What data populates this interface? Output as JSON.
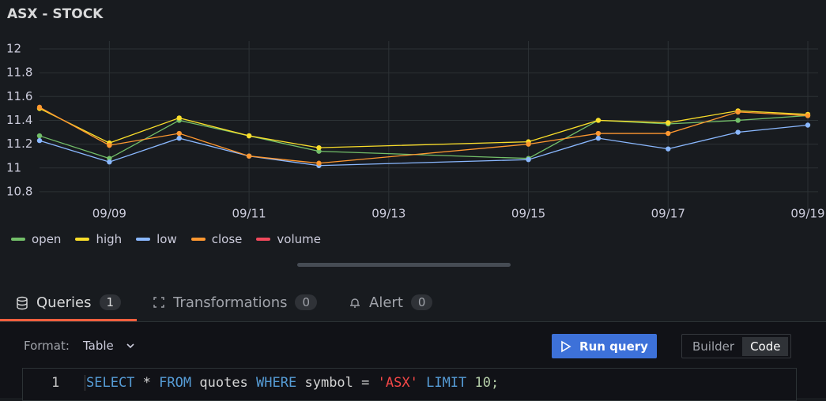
{
  "panel": {
    "title": "ASX - STOCK"
  },
  "chart_data": {
    "type": "line",
    "x": [
      "09/08",
      "09/09",
      "09/10",
      "09/11",
      "09/12",
      "09/15",
      "09/16",
      "09/17",
      "09/18",
      "09/19"
    ],
    "xlim": [
      "09/08",
      "09/19"
    ],
    "xticks": [
      "09/09",
      "09/11",
      "09/13",
      "09/15",
      "09/17",
      "09/19"
    ],
    "ylim": [
      10.7,
      12
    ],
    "yticks": [
      10.8,
      11,
      11.2,
      11.4,
      11.6,
      11.8,
      12
    ],
    "grid": true,
    "legend": "bottom",
    "series": [
      {
        "name": "open",
        "color": "#73bf69",
        "values": [
          11.27,
          11.08,
          11.4,
          11.27,
          11.14,
          11.08,
          11.4,
          11.37,
          11.4,
          11.44
        ]
      },
      {
        "name": "high",
        "color": "#fade2a",
        "values": [
          11.5,
          11.21,
          11.42,
          11.27,
          11.17,
          11.22,
          11.4,
          11.38,
          11.48,
          11.45
        ]
      },
      {
        "name": "low",
        "color": "#8ab8ff",
        "values": [
          11.23,
          11.05,
          11.25,
          11.1,
          11.02,
          11.07,
          11.25,
          11.16,
          11.3,
          11.36
        ]
      },
      {
        "name": "close",
        "color": "#ff9830",
        "values": [
          11.51,
          11.19,
          11.29,
          11.1,
          11.04,
          11.2,
          11.29,
          11.29,
          11.47,
          11.44
        ]
      },
      {
        "name": "volume",
        "color": "#f2495c"
      }
    ]
  },
  "tabs": [
    {
      "label": "Queries",
      "count": 1
    },
    {
      "label": "Transformations",
      "count": 0
    },
    {
      "label": "Alert",
      "count": 0
    }
  ],
  "toolbar": {
    "format_label": "Format:",
    "format_value": "Table",
    "run": "Run query",
    "modes": [
      "Builder",
      "Code"
    ]
  },
  "editor": {
    "line": 1,
    "tokens": [
      {
        "text": "SELECT",
        "color": "#569cd6"
      },
      {
        "text": "*",
        "color": "#d4d4d4"
      },
      {
        "text": "FROM",
        "color": "#569cd6"
      },
      {
        "text": "quotes",
        "color": "#d4d4d4"
      },
      {
        "text": "WHERE",
        "color": "#569cd6"
      },
      {
        "text": "symbol",
        "color": "#d4d4d4"
      },
      {
        "text": "=",
        "color": "#d4d4d4"
      },
      {
        "text": "'ASX'",
        "color": "#f44747"
      },
      {
        "text": "LIMIT",
        "color": "#569cd6"
      },
      {
        "text": "10;",
        "color": "#b5cea8"
      }
    ]
  }
}
